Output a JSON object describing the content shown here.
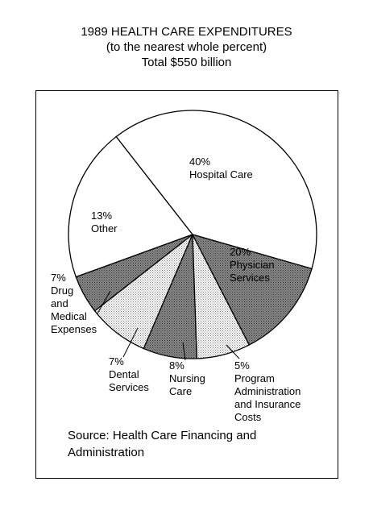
{
  "title": {
    "line1": "1989 HEALTH CARE EXPENDITURES",
    "line2": "(to the nearest whole percent)",
    "line3": "Total $550 billion"
  },
  "source": "Source: Health Care Financing and Administration",
  "chart_data": {
    "type": "pie",
    "title": "1989 HEALTH CARE EXPENDITURES",
    "subtitle": "(to the nearest whole percent)",
    "total": "Total $550 billion",
    "slices": [
      {
        "label": "Hospital Care",
        "pct_label": "40%",
        "value": 40,
        "fill": "#ffffff"
      },
      {
        "label": "Physician Services",
        "pct_label": "20%",
        "value": 20,
        "fill": "#ffffff"
      },
      {
        "label": "Program Administration and Insurance Costs",
        "pct_label": "5%",
        "value": 5,
        "fill": "#6e6e6e"
      },
      {
        "label": "Nursing Care",
        "pct_label": "8%",
        "value": 8,
        "fill": "#c8c8c8"
      },
      {
        "label": "Dental Services",
        "pct_label": "7%",
        "value": 7,
        "fill": "#6e6e6e"
      },
      {
        "label": "Drug and Medical Expenses",
        "pct_label": "7%",
        "value": 7,
        "fill": "#c8c8c8"
      },
      {
        "label": "Other",
        "pct_label": "13%",
        "value": 13,
        "fill": "#6e6e6e"
      }
    ]
  }
}
